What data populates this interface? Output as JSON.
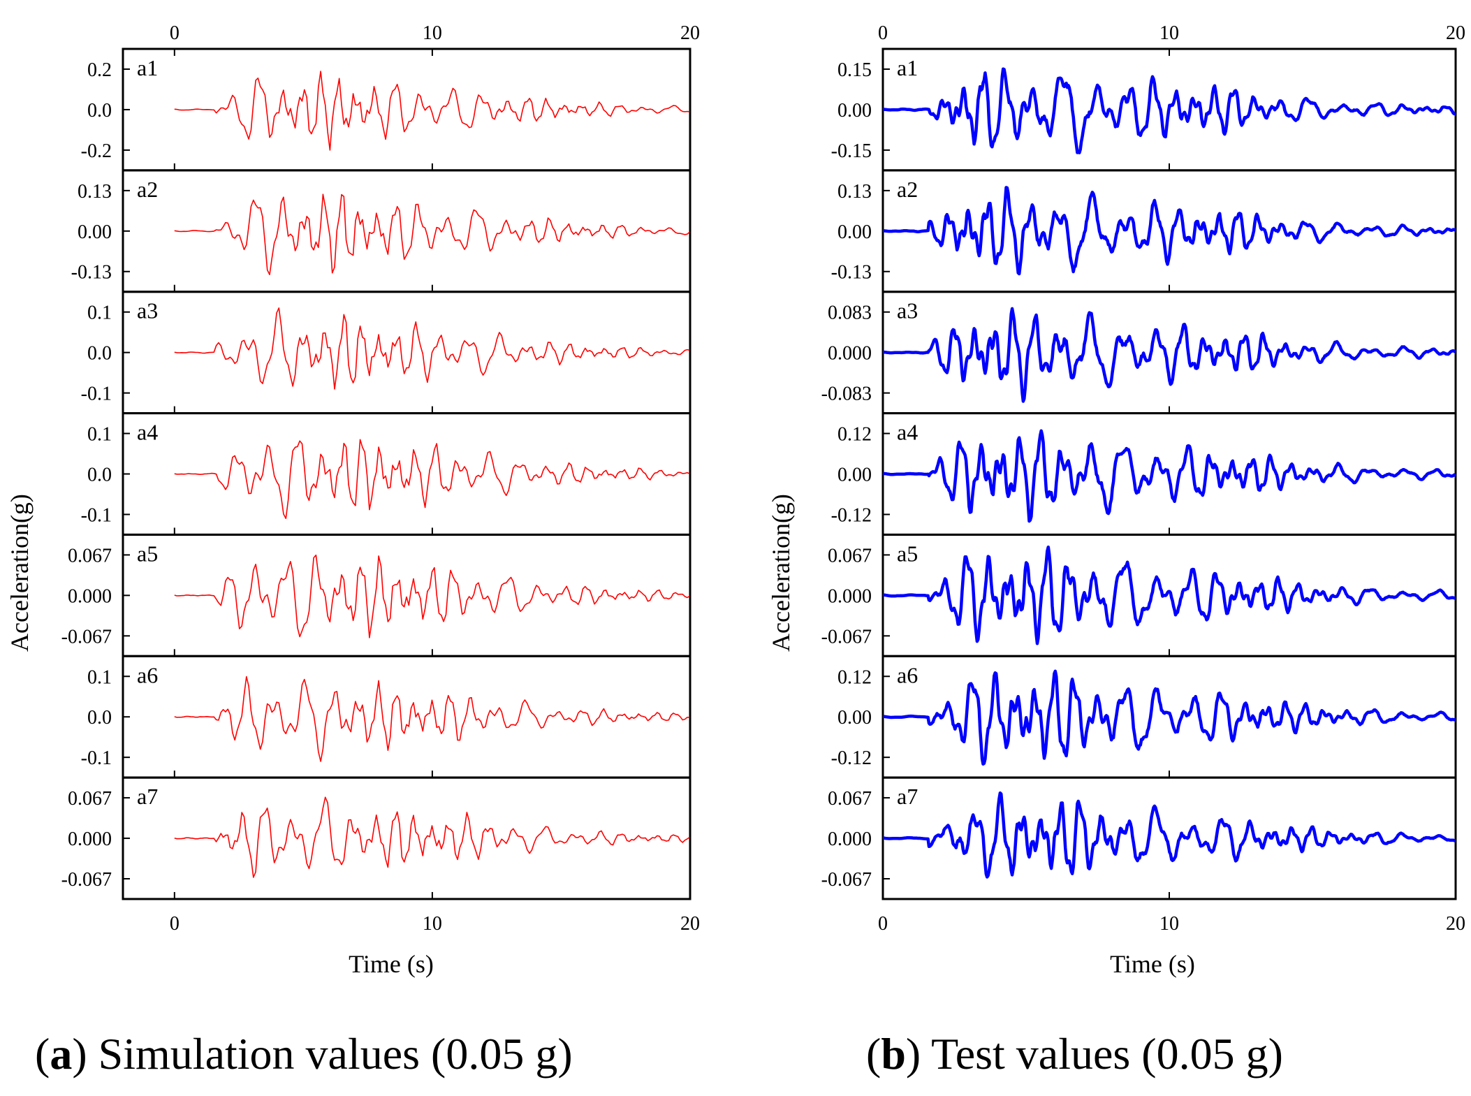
{
  "chart_data": [
    {
      "type": "line",
      "id": "sim",
      "caption_letter": "a",
      "caption_text": "Simulation values (0.05 g)",
      "xlabel": "Time (s)",
      "ylabel": "Acceleration(g)",
      "xlim": [
        -2,
        20
      ],
      "xticks": [
        0,
        10,
        20
      ],
      "color": "#ff0000",
      "line_style": "thin",
      "panels": [
        {
          "label": "a1",
          "ylim": [
            -0.3,
            0.3
          ],
          "yticks": [
            0.2,
            0.0,
            -0.2
          ],
          "ytick_labels": [
            "0.2",
            "0.0",
            "-0.2"
          ],
          "amplitude": 0.2
        },
        {
          "label": "a2",
          "ylim": [
            -0.195,
            0.195
          ],
          "yticks": [
            0.13,
            0.0,
            -0.13
          ],
          "ytick_labels": [
            "0.13",
            "0.00",
            "-0.13"
          ],
          "amplitude": 0.14
        },
        {
          "label": "a3",
          "ylim": [
            -0.15,
            0.15
          ],
          "yticks": [
            0.1,
            0.0,
            -0.1
          ],
          "ytick_labels": [
            "0.1",
            "0.0",
            "-0.1"
          ],
          "amplitude": 0.11
        },
        {
          "label": "a4",
          "ylim": [
            -0.15,
            0.15
          ],
          "yticks": [
            0.1,
            0.0,
            -0.1
          ],
          "ytick_labels": [
            "0.1",
            "0.0",
            "-0.1"
          ],
          "amplitude": 0.11
        },
        {
          "label": "a5",
          "ylim": [
            -0.1005,
            0.1005
          ],
          "yticks": [
            0.067,
            0.0,
            -0.067
          ],
          "ytick_labels": [
            "0.067",
            "0.000",
            "-0.067"
          ],
          "amplitude": 0.07
        },
        {
          "label": "a6",
          "ylim": [
            -0.15,
            0.15
          ],
          "yticks": [
            0.1,
            0.0,
            -0.1
          ],
          "ytick_labels": [
            "0.1",
            "0.0",
            "-0.1"
          ],
          "amplitude": 0.11
        },
        {
          "label": "a7",
          "ylim": [
            -0.1005,
            0.1005
          ],
          "yticks": [
            0.067,
            0.0,
            -0.067
          ],
          "ytick_labels": [
            "0.067",
            "0.000",
            "-0.067"
          ],
          "amplitude": 0.068
        }
      ]
    },
    {
      "type": "line",
      "id": "test",
      "caption_letter": "b",
      "caption_text": "Test values (0.05 g)",
      "xlabel": "Time (s)",
      "ylabel": "Acceleration(g)",
      "xlim": [
        0,
        20
      ],
      "xticks": [
        0,
        10,
        20
      ],
      "color": "#0000ff",
      "line_style": "thick",
      "panels": [
        {
          "label": "a1",
          "ylim": [
            -0.225,
            0.225
          ],
          "yticks": [
            0.15,
            0.0,
            -0.15
          ],
          "ytick_labels": [
            "0.15",
            "0.00",
            "-0.15"
          ],
          "amplitude": 0.16
        },
        {
          "label": "a2",
          "ylim": [
            -0.195,
            0.195
          ],
          "yticks": [
            0.13,
            0.0,
            -0.13
          ],
          "ytick_labels": [
            "0.13",
            "0.00",
            "-0.13"
          ],
          "amplitude": 0.14
        },
        {
          "label": "a3",
          "ylim": [
            -0.1245,
            0.1245
          ],
          "yticks": [
            0.083,
            0.0,
            -0.083
          ],
          "ytick_labels": [
            "0.083",
            "0.000",
            "-0.083"
          ],
          "amplitude": 0.1
        },
        {
          "label": "a4",
          "ylim": [
            -0.18,
            0.18
          ],
          "yticks": [
            0.12,
            0.0,
            -0.12
          ],
          "ytick_labels": [
            "0.12",
            "0.00",
            "-0.12"
          ],
          "amplitude": 0.14
        },
        {
          "label": "a5",
          "ylim": [
            -0.1005,
            0.1005
          ],
          "yticks": [
            0.067,
            0.0,
            -0.067
          ],
          "ytick_labels": [
            "0.067",
            "0.000",
            "-0.067"
          ],
          "amplitude": 0.08
        },
        {
          "label": "a6",
          "ylim": [
            -0.18,
            0.18
          ],
          "yticks": [
            0.12,
            0.0,
            -0.12
          ],
          "ytick_labels": [
            "0.12",
            "0.00",
            "-0.12"
          ],
          "amplitude": 0.14
        },
        {
          "label": "a7",
          "ylim": [
            -0.1005,
            0.1005
          ],
          "yticks": [
            0.067,
            0.0,
            -0.067
          ],
          "ytick_labels": [
            "0.067",
            "0.000",
            "-0.067"
          ],
          "amplitude": 0.075
        }
      ]
    }
  ]
}
